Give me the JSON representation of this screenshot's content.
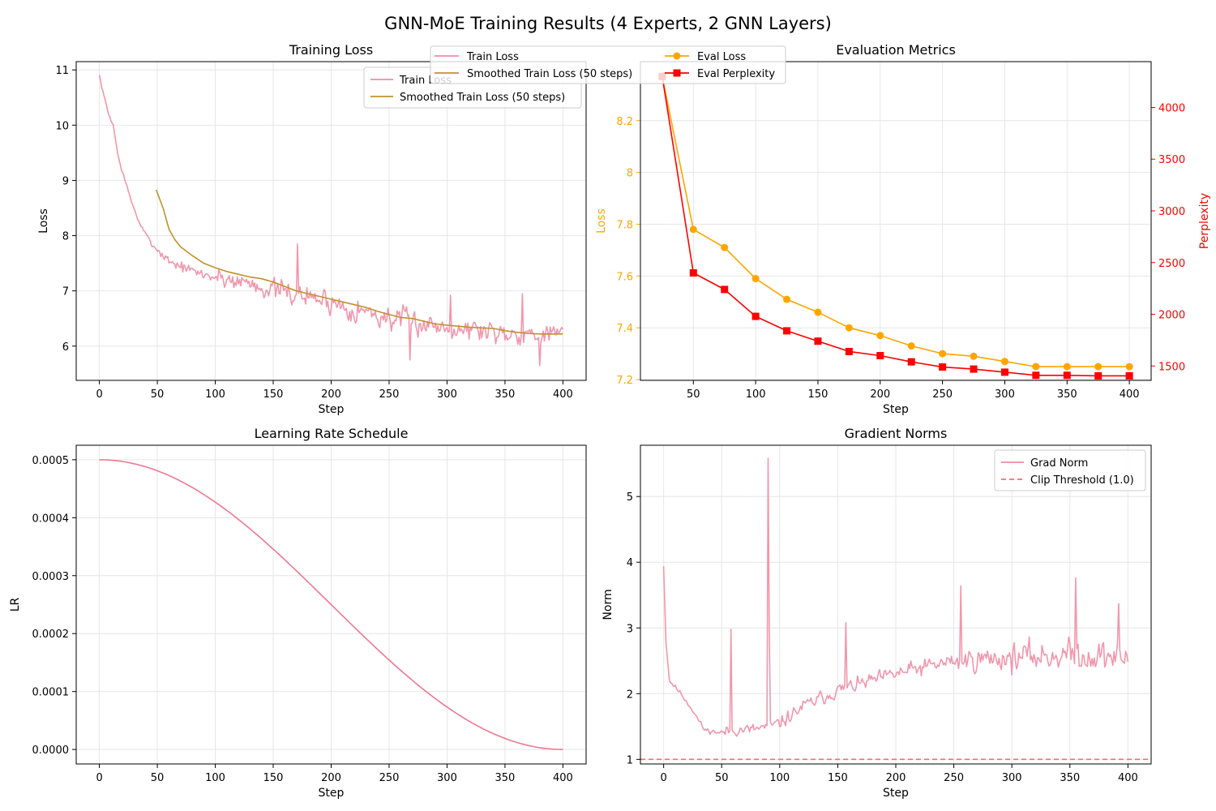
{
  "figure_title": "GNN-MoE Training Results (4 Experts, 2 GNN Layers)",
  "colors": {
    "train": "#f08ca4",
    "smooth": "#c0922a",
    "eval_loss": "#ffa500",
    "perplexity": "#ff0000",
    "lr": "#f07890",
    "grad": "#f08ca4",
    "clip": "#ff6b6b",
    "grid": "#e6e6e6",
    "axis": "#000000"
  },
  "chart_data": [
    {
      "id": "training-loss",
      "type": "line",
      "title": "Training Loss",
      "xlabel": "Step",
      "ylabel": "Loss",
      "xlim": [
        -20,
        420
      ],
      "ylim": [
        5.38,
        11.15
      ],
      "xticks": [
        0,
        50,
        100,
        150,
        200,
        250,
        300,
        350,
        400
      ],
      "yticks": [
        6,
        7,
        8,
        9,
        10,
        11
      ],
      "grid": true,
      "legend": "upper-right",
      "series": [
        {
          "name": "Train Loss",
          "generated": "noisy",
          "steps": [
            0,
            400
          ],
          "anchors": [
            [
              0,
              10.9
            ],
            [
              3,
              10.6
            ],
            [
              8,
              10.2
            ],
            [
              12,
              10.0
            ],
            [
              16,
              9.45
            ],
            [
              22,
              9.0
            ],
            [
              28,
              8.6
            ],
            [
              35,
              8.2
            ],
            [
              45,
              7.85
            ],
            [
              60,
              7.55
            ],
            [
              80,
              7.35
            ],
            [
              100,
              7.25
            ],
            [
              130,
              7.15
            ],
            [
              150,
              7.0
            ],
            [
              170,
              6.95
            ],
            [
              200,
              6.8
            ],
            [
              250,
              6.5
            ],
            [
              300,
              6.35
            ],
            [
              350,
              6.25
            ],
            [
              400,
              6.2
            ]
          ],
          "noise": [
            0.05,
            0.15,
            0.25,
            0.3,
            0.32,
            0.3,
            0.3,
            0.28,
            0.25
          ],
          "spikes": [
            [
              171,
              7.85
            ],
            [
              268,
              5.75
            ],
            [
              380,
              5.65
            ],
            [
              303,
              6.92
            ],
            [
              365,
              6.95
            ]
          ],
          "seed": 7
        },
        {
          "name": "Smoothed Train Loss (50 steps)",
          "x": [
            49,
            55,
            60,
            65,
            70,
            80,
            90,
            100,
            110,
            120,
            130,
            140,
            150,
            160,
            170,
            180,
            190,
            200,
            210,
            220,
            230,
            240,
            250,
            260,
            270,
            280,
            290,
            300,
            310,
            320,
            330,
            340,
            350,
            360,
            370,
            380,
            390,
            400
          ],
          "y": [
            8.83,
            8.5,
            8.12,
            7.93,
            7.8,
            7.64,
            7.5,
            7.42,
            7.35,
            7.3,
            7.25,
            7.22,
            7.16,
            7.08,
            7.0,
            6.95,
            6.9,
            6.85,
            6.8,
            6.75,
            6.7,
            6.63,
            6.57,
            6.52,
            6.5,
            6.45,
            6.4,
            6.38,
            6.36,
            6.34,
            6.33,
            6.32,
            6.28,
            6.25,
            6.23,
            6.22,
            6.22,
            6.22
          ]
        }
      ]
    },
    {
      "id": "evaluation-metrics",
      "type": "line",
      "title": "Evaluation Metrics",
      "xlabel": "Step",
      "ylabel": "Loss",
      "ylabel_right": "Perplexity",
      "xlim": [
        7.5,
        417.5
      ],
      "ylim": [
        7.197,
        8.428
      ],
      "ylim_right": [
        1361,
        4443
      ],
      "xticks": [
        50,
        100,
        150,
        200,
        250,
        300,
        350,
        400
      ],
      "yticks": [
        7.2,
        7.4,
        7.6,
        7.8,
        8.0,
        8.2
      ],
      "yticks_right": [
        1500,
        2000,
        2500,
        3000,
        3500,
        4000
      ],
      "grid": true,
      "legend": "upper-center",
      "series": [
        {
          "name": "Eval Loss",
          "axis": "left",
          "marker": "circle",
          "x": [
            25,
            50,
            75,
            100,
            125,
            150,
            175,
            200,
            225,
            250,
            275,
            300,
            325,
            350,
            375,
            400
          ],
          "y": [
            8.37,
            7.78,
            7.71,
            7.59,
            7.51,
            7.46,
            7.4,
            7.37,
            7.33,
            7.3,
            7.29,
            7.27,
            7.25,
            7.25,
            7.25,
            7.25
          ]
        },
        {
          "name": "Eval Perplexity",
          "axis": "right",
          "marker": "square",
          "x": [
            25,
            50,
            75,
            100,
            125,
            150,
            175,
            200,
            225,
            250,
            275,
            300,
            325,
            350,
            375,
            400
          ],
          "y": [
            4300,
            2400,
            2240,
            1980,
            1840,
            1740,
            1640,
            1600,
            1540,
            1490,
            1470,
            1440,
            1410,
            1410,
            1405,
            1405
          ]
        }
      ]
    },
    {
      "id": "learning-rate-schedule",
      "type": "line",
      "title": "Learning Rate Schedule",
      "xlabel": "Step",
      "ylabel": "LR",
      "xlim": [
        -20,
        420
      ],
      "ylim": [
        -2.5e-05,
        0.000525
      ],
      "xticks": [
        0,
        50,
        100,
        150,
        200,
        250,
        300,
        350,
        400
      ],
      "yticks": [
        0,
        0.0001,
        0.0002,
        0.0003,
        0.0004,
        0.0005
      ],
      "ytick_labels": [
        "0.0000",
        "0.0001",
        "0.0002",
        "0.0003",
        "0.0004",
        "0.0005"
      ],
      "grid": true,
      "series": [
        {
          "name": "LR",
          "generated": "cosine",
          "max": 0.0005,
          "steps": [
            0,
            400
          ]
        }
      ]
    },
    {
      "id": "gradient-norms",
      "type": "line",
      "title": "Gradient Norms",
      "xlabel": "Step",
      "ylabel": "Norm",
      "xlim": [
        -20,
        420
      ],
      "ylim": [
        0.93,
        5.78
      ],
      "xticks": [
        0,
        50,
        100,
        150,
        200,
        250,
        300,
        350,
        400
      ],
      "yticks": [
        1,
        2,
        3,
        4,
        5
      ],
      "grid": true,
      "legend": "upper-right",
      "series": [
        {
          "name": "Grad Norm",
          "generated": "noisy",
          "steps": [
            0,
            400
          ],
          "anchors": [
            [
              0,
              3.9
            ],
            [
              2,
              2.8
            ],
            [
              5,
              2.2
            ],
            [
              15,
              2.0
            ],
            [
              25,
              1.75
            ],
            [
              35,
              1.45
            ],
            [
              50,
              1.4
            ],
            [
              60,
              1.45
            ],
            [
              75,
              1.45
            ],
            [
              90,
              1.5
            ],
            [
              100,
              1.55
            ],
            [
              120,
              1.8
            ],
            [
              150,
              2.05
            ],
            [
              200,
              2.3
            ],
            [
              250,
              2.5
            ],
            [
              300,
              2.55
            ],
            [
              350,
              2.6
            ],
            [
              400,
              2.55
            ]
          ],
          "noise": [
            0.05,
            0.12,
            0.15,
            0.15,
            0.18,
            0.25,
            0.3,
            0.32,
            0.3
          ],
          "spikes": [
            [
              0,
              3.94
            ],
            [
              58,
              2.98
            ],
            [
              90,
              5.58
            ],
            [
              91,
              3.0
            ],
            [
              157,
              3.08
            ],
            [
              256,
              3.64
            ],
            [
              355,
              3.76
            ],
            [
              392,
              3.37
            ]
          ],
          "seed": 11
        },
        {
          "name": "Clip Threshold (1.0)",
          "dashed": true,
          "y_const": 1.0
        }
      ]
    }
  ]
}
